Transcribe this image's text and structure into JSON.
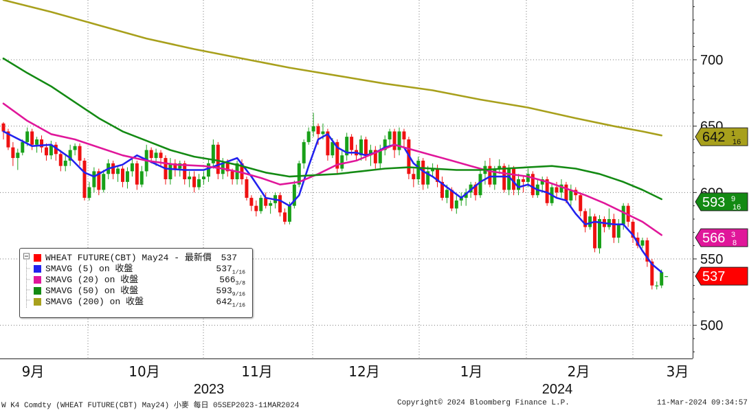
{
  "chart_data": {
    "type": "candlestick",
    "ylim": [
      475,
      745
    ],
    "y_ticks": [
      500,
      550,
      600,
      650,
      700
    ],
    "x_tick_labels": [
      "9月",
      "10月",
      "11月",
      "12月",
      "1月",
      "2月",
      "3月"
    ],
    "year_labels": [
      "2023",
      "2024"
    ],
    "grid": true,
    "candles": [
      [
        652,
        646,
        653,
        640
      ],
      [
        646,
        634,
        648,
        632
      ],
      [
        634,
        626,
        638,
        620
      ],
      [
        626,
        630,
        633,
        617
      ],
      [
        630,
        638,
        640,
        628
      ],
      [
        638,
        646,
        649,
        635
      ],
      [
        646,
        636,
        648,
        632
      ],
      [
        636,
        640,
        642,
        630
      ],
      [
        640,
        634,
        643,
        630
      ],
      [
        634,
        628,
        637,
        624
      ],
      [
        628,
        636,
        639,
        625
      ],
      [
        636,
        629,
        638,
        624
      ],
      [
        629,
        620,
        632,
        616
      ],
      [
        620,
        624,
        628,
        616
      ],
      [
        624,
        632,
        636,
        620
      ],
      [
        632,
        635,
        637,
        628
      ],
      [
        635,
        624,
        637,
        620
      ],
      [
        624,
        596,
        626,
        594
      ],
      [
        596,
        604,
        608,
        594
      ],
      [
        604,
        616,
        619,
        600
      ],
      [
        616,
        602,
        618,
        598
      ],
      [
        602,
        614,
        617,
        600
      ],
      [
        614,
        622,
        625,
        610
      ],
      [
        622,
        614,
        624,
        610
      ],
      [
        614,
        618,
        620,
        608
      ],
      [
        618,
        608,
        620,
        604
      ],
      [
        608,
        616,
        619,
        603
      ],
      [
        616,
        622,
        625,
        612
      ],
      [
        622,
        606,
        624,
        602
      ],
      [
        606,
        616,
        620,
        604
      ],
      [
        616,
        632,
        636,
        612
      ],
      [
        632,
        626,
        634,
        622
      ],
      [
        626,
        630,
        633,
        620
      ],
      [
        630,
        626,
        632,
        620
      ],
      [
        626,
        610,
        628,
        606
      ],
      [
        610,
        622,
        626,
        606
      ],
      [
        622,
        618,
        625,
        612
      ],
      [
        618,
        622,
        624,
        612
      ],
      [
        622,
        610,
        624,
        606
      ],
      [
        610,
        612,
        616,
        604
      ],
      [
        612,
        604,
        616,
        600
      ],
      [
        604,
        610,
        614,
        602
      ],
      [
        610,
        612,
        616,
        606
      ],
      [
        612,
        622,
        625,
        608
      ],
      [
        622,
        636,
        640,
        618
      ],
      [
        636,
        614,
        638,
        610
      ],
      [
        614,
        622,
        626,
        610
      ],
      [
        622,
        616,
        625,
        612
      ],
      [
        616,
        610,
        618,
        606
      ],
      [
        610,
        622,
        624,
        606
      ],
      [
        622,
        610,
        625,
        606
      ],
      [
        610,
        596,
        612,
        594
      ],
      [
        596,
        590,
        598,
        586
      ],
      [
        590,
        586,
        594,
        582
      ],
      [
        586,
        596,
        598,
        584
      ],
      [
        596,
        590,
        600,
        588
      ],
      [
        590,
        592,
        594,
        584
      ],
      [
        592,
        598,
        600,
        588
      ],
      [
        598,
        585,
        600,
        582
      ],
      [
        585,
        578,
        588,
        576
      ],
      [
        578,
        590,
        593,
        576
      ],
      [
        590,
        606,
        609,
        588
      ],
      [
        606,
        622,
        624,
        604
      ],
      [
        622,
        638,
        640,
        618
      ],
      [
        638,
        646,
        649,
        636
      ],
      [
        646,
        650,
        660,
        642
      ],
      [
        650,
        644,
        652,
        636
      ],
      [
        644,
        646,
        652,
        640
      ],
      [
        646,
        628,
        648,
        624
      ],
      [
        628,
        638,
        641,
        626
      ],
      [
        638,
        618,
        640,
        614
      ],
      [
        618,
        628,
        632,
        616
      ],
      [
        628,
        642,
        645,
        624
      ],
      [
        642,
        632,
        644,
        628
      ],
      [
        632,
        628,
        636,
        624
      ],
      [
        628,
        640,
        643,
        624
      ],
      [
        640,
        628,
        642,
        624
      ],
      [
        628,
        632,
        636,
        620
      ],
      [
        632,
        622,
        635,
        618
      ],
      [
        622,
        632,
        636,
        618
      ],
      [
        632,
        640,
        643,
        628
      ],
      [
        640,
        646,
        648,
        634
      ],
      [
        646,
        632,
        648,
        626
      ],
      [
        632,
        646,
        649,
        628
      ],
      [
        646,
        640,
        648,
        634
      ],
      [
        640,
        614,
        642,
        610
      ],
      [
        614,
        610,
        618,
        604
      ],
      [
        610,
        624,
        627,
        606
      ],
      [
        624,
        606,
        626,
        602
      ],
      [
        606,
        616,
        620,
        603
      ],
      [
        616,
        618,
        622,
        612
      ],
      [
        618,
        608,
        621,
        604
      ],
      [
        608,
        596,
        612,
        594
      ],
      [
        596,
        602,
        606,
        592
      ],
      [
        602,
        588,
        604,
        586
      ],
      [
        588,
        594,
        598,
        584
      ],
      [
        594,
        596,
        600,
        590
      ],
      [
        596,
        600,
        603,
        590
      ],
      [
        600,
        606,
        608,
        596
      ],
      [
        606,
        598,
        608,
        594
      ],
      [
        598,
        614,
        618,
        596
      ],
      [
        614,
        620,
        624,
        606
      ],
      [
        620,
        606,
        626,
        604
      ],
      [
        606,
        618,
        620,
        602
      ],
      [
        618,
        620,
        625,
        614
      ],
      [
        620,
        602,
        622,
        600
      ],
      [
        602,
        618,
        621,
        598
      ],
      [
        618,
        602,
        620,
        598
      ],
      [
        602,
        610,
        614,
        598
      ],
      [
        610,
        608,
        612,
        600
      ],
      [
        608,
        614,
        618,
        604
      ],
      [
        614,
        598,
        616,
        596
      ],
      [
        598,
        606,
        610,
        596
      ],
      [
        606,
        610,
        612,
        600
      ],
      [
        610,
        592,
        612,
        590
      ],
      [
        592,
        604,
        607,
        590
      ],
      [
        604,
        600,
        608,
        596
      ],
      [
        600,
        606,
        610,
        596
      ],
      [
        606,
        594,
        608,
        592
      ],
      [
        594,
        602,
        606,
        590
      ],
      [
        602,
        598,
        604,
        594
      ],
      [
        598,
        586,
        600,
        582
      ],
      [
        586,
        574,
        588,
        570
      ],
      [
        574,
        582,
        588,
        572
      ],
      [
        582,
        558,
        584,
        555
      ],
      [
        558,
        580,
        583,
        554
      ],
      [
        580,
        574,
        582,
        570
      ],
      [
        574,
        580,
        588,
        572
      ],
      [
        580,
        566,
        584,
        562
      ],
      [
        566,
        576,
        580,
        562
      ],
      [
        576,
        590,
        592,
        572
      ],
      [
        590,
        578,
        592,
        574
      ],
      [
        578,
        566,
        580,
        562
      ],
      [
        566,
        560,
        570,
        558
      ],
      [
        560,
        564,
        566,
        558
      ],
      [
        564,
        548,
        566,
        544
      ],
      [
        548,
        530,
        550,
        527
      ],
      [
        530,
        530,
        533,
        527
      ],
      [
        530,
        540,
        542,
        528
      ],
      [
        537,
        537,
        537,
        537
      ]
    ],
    "series": [
      {
        "name": "WHEAT FUTURE(CBT) May24 - 最新價",
        "legend_value": "537",
        "color": "#ff0000"
      },
      {
        "name": "SMAVG (5)  on 收盤",
        "legend_value": "537",
        "legend_frac": "1/16",
        "color": "#2222ee",
        "values": [
          [
            0,
            646
          ],
          [
            6,
            635
          ],
          [
            10,
            636
          ],
          [
            14,
            626
          ],
          [
            17,
            615
          ],
          [
            19,
            612
          ],
          [
            22,
            618
          ],
          [
            25,
            621
          ],
          [
            28,
            628
          ],
          [
            31,
            623
          ],
          [
            34,
            618
          ],
          [
            38,
            617
          ],
          [
            42,
            617
          ],
          [
            46,
            622
          ],
          [
            49,
            626
          ],
          [
            52,
            612
          ],
          [
            55,
            596
          ],
          [
            58,
            594
          ],
          [
            60,
            590
          ],
          [
            62,
            598
          ],
          [
            64,
            620
          ],
          [
            66,
            640
          ],
          [
            68,
            644
          ],
          [
            70,
            634
          ],
          [
            72,
            630
          ],
          [
            74,
            630
          ],
          [
            76,
            628
          ],
          [
            78,
            630
          ],
          [
            80,
            634
          ],
          [
            82,
            636
          ],
          [
            84,
            634
          ],
          [
            86,
            622
          ],
          [
            88,
            616
          ],
          [
            90,
            612
          ],
          [
            93,
            604
          ],
          [
            96,
            596
          ],
          [
            98,
            602
          ],
          [
            100,
            608
          ],
          [
            102,
            612
          ],
          [
            104,
            612
          ],
          [
            106,
            612
          ],
          [
            108,
            604
          ],
          [
            110,
            606
          ],
          [
            112,
            602
          ],
          [
            114,
            600
          ],
          [
            116,
            596
          ],
          [
            118,
            594
          ],
          [
            120,
            584
          ],
          [
            122,
            576
          ],
          [
            124,
            578
          ],
          [
            126,
            577
          ],
          [
            128,
            576
          ],
          [
            130,
            576
          ],
          [
            132,
            568
          ],
          [
            134,
            556
          ],
          [
            136,
            546
          ],
          [
            138,
            540
          ]
        ]
      },
      {
        "name": "SMAVG (20)  on 收盤",
        "legend_value": "566",
        "legend_frac": "3/8",
        "color": "#e0179a",
        "values": [
          [
            0,
            667
          ],
          [
            5,
            654
          ],
          [
            10,
            644
          ],
          [
            15,
            640
          ],
          [
            20,
            634
          ],
          [
            25,
            628
          ],
          [
            30,
            624
          ],
          [
            36,
            621
          ],
          [
            42,
            620
          ],
          [
            46,
            618
          ],
          [
            50,
            615
          ],
          [
            54,
            611
          ],
          [
            58,
            606
          ],
          [
            62,
            608
          ],
          [
            66,
            614
          ],
          [
            70,
            621
          ],
          [
            74,
            624
          ],
          [
            78,
            630
          ],
          [
            82,
            636
          ],
          [
            86,
            632
          ],
          [
            90,
            628
          ],
          [
            94,
            624
          ],
          [
            98,
            620
          ],
          [
            102,
            616
          ],
          [
            106,
            614
          ],
          [
            110,
            612
          ],
          [
            114,
            608
          ],
          [
            118,
            603
          ],
          [
            122,
            598
          ],
          [
            126,
            592
          ],
          [
            130,
            585
          ],
          [
            134,
            578
          ],
          [
            138,
            568
          ]
        ]
      },
      {
        "name": "SMAVG (50)  on 收盤",
        "legend_value": "593",
        "legend_frac": "9/16",
        "color": "#138a13",
        "values": [
          [
            0,
            701
          ],
          [
            5,
            690
          ],
          [
            10,
            680
          ],
          [
            15,
            668
          ],
          [
            20,
            656
          ],
          [
            25,
            646
          ],
          [
            30,
            639
          ],
          [
            35,
            632
          ],
          [
            40,
            627
          ],
          [
            45,
            624
          ],
          [
            50,
            620
          ],
          [
            55,
            615
          ],
          [
            60,
            612
          ],
          [
            65,
            613
          ],
          [
            70,
            614
          ],
          [
            75,
            616
          ],
          [
            80,
            618
          ],
          [
            85,
            619
          ],
          [
            90,
            618
          ],
          [
            95,
            617
          ],
          [
            100,
            617
          ],
          [
            105,
            618
          ],
          [
            110,
            619
          ],
          [
            115,
            620
          ],
          [
            120,
            618
          ],
          [
            125,
            614
          ],
          [
            130,
            608
          ],
          [
            134,
            602
          ],
          [
            138,
            595
          ]
        ]
      },
      {
        "name": "SMAVG (200)  on 收盤",
        "legend_value": "642",
        "legend_frac": "1/16",
        "color": "#a8a01c",
        "values": [
          [
            0,
            745
          ],
          [
            10,
            736
          ],
          [
            20,
            726
          ],
          [
            30,
            716
          ],
          [
            40,
            708
          ],
          [
            50,
            701
          ],
          [
            60,
            694
          ],
          [
            70,
            688
          ],
          [
            80,
            682
          ],
          [
            90,
            677
          ],
          [
            100,
            670
          ],
          [
            110,
            664
          ],
          [
            120,
            656
          ],
          [
            128,
            650
          ],
          [
            134,
            646
          ],
          [
            138,
            643
          ]
        ]
      }
    ],
    "price_tags": [
      {
        "value": 642,
        "text": "642",
        "frac": "1/16",
        "color": "#a8a01c"
      },
      {
        "value": 593,
        "text": "593",
        "frac": "9/16",
        "color": "#138a13"
      },
      {
        "value": 566,
        "text": "566",
        "frac": "3/8",
        "color": "#e0179a"
      },
      {
        "value": 537,
        "text": "537",
        "frac": "",
        "color": "#ff0000"
      }
    ]
  },
  "footer": {
    "left": "W K4 Comdty (WHEAT FUTURE(CBT) May24) 小麥  每日 05SEP2023-11MAR2024",
    "center": "Copyright© 2024 Bloomberg Finance L.P.",
    "right": "11-Mar-2024 09:34:57"
  }
}
